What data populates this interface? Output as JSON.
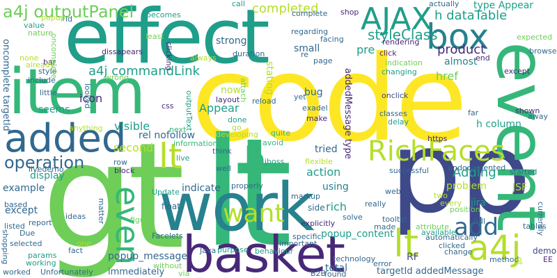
{
  "palette": {
    "yellow": "#fde725",
    "lime": "#b5de2b",
    "green": "#6ece58",
    "aqua": "#35b779",
    "teal": "#1f9e89",
    "blue": "#26828e",
    "navy": "#31688e",
    "indigo": "#3e4989",
    "purple": "#482878",
    "deep": "#440154"
  },
  "words": [
    {
      "text": "code",
      "color": "yellow"
    },
    {
      "text": "gt",
      "color": "green"
    },
    {
      "text": "lt",
      "color": "aqua"
    },
    {
      "text": "effect",
      "color": "teal"
    },
    {
      "text": "p",
      "color": "indigo"
    },
    {
      "text": "p",
      "color": "indigo"
    },
    {
      "text": "work",
      "color": "blue"
    },
    {
      "text": "item",
      "color": "aqua"
    },
    {
      "text": "event",
      "color": "aqua"
    },
    {
      "text": "basket",
      "color": "purple"
    },
    {
      "text": "added",
      "color": "navy"
    },
    {
      "text": "box",
      "color": "blue"
    },
    {
      "text": "AJAX",
      "color": "teal"
    },
    {
      "text": "RichFaces",
      "color": "lime"
    },
    {
      "text": "h",
      "color": "aqua"
    },
    {
      "text": "lt",
      "color": "lime"
    },
    {
      "text": "lt",
      "color": "lime"
    },
    {
      "text": "a4j",
      "color": "lime"
    },
    {
      "text": "even",
      "color": "aqua"
    },
    {
      "text": "want",
      "color": "lime"
    },
    {
      "text": "operation",
      "color": "navy"
    },
    {
      "text": "add",
      "color": "navy"
    },
    {
      "text": "a4j outputPanel",
      "color": "green"
    },
    {
      "text": "a4j commandLink",
      "color": "teal"
    },
    {
      "text": "completed",
      "color": "lime"
    },
    {
      "text": "h dataTable",
      "color": "teal"
    },
    {
      "text": "styleClass",
      "color": "teal"
    },
    {
      "text": "product",
      "color": "purple"
    },
    {
      "text": "almost",
      "color": "blue"
    },
    {
      "text": "type Appear",
      "color": "teal"
    },
    {
      "text": "strong",
      "color": "navy"
    },
    {
      "text": "small",
      "color": "navy"
    },
    {
      "text": "pre",
      "color": "teal"
    },
    {
      "text": "Adding",
      "color": "teal"
    },
    {
      "text": "stating",
      "color": "lime"
    },
    {
      "text": "href",
      "color": "green"
    },
    {
      "text": "bug",
      "color": "navy"
    },
    {
      "text": "Appear",
      "color": "teal"
    },
    {
      "text": "icon",
      "color": "purple"
    },
    {
      "text": "visible",
      "color": "teal"
    },
    {
      "text": "seems",
      "color": "teal"
    },
    {
      "text": "h column",
      "color": "teal"
    },
    {
      "text": "second",
      "color": "lime"
    },
    {
      "text": "rel nofollow",
      "color": "navy"
    },
    {
      "text": "tried",
      "color": "navy"
    },
    {
      "text": "display",
      "color": "teal"
    },
    {
      "text": "example",
      "color": "navy"
    },
    {
      "text": "action",
      "color": "teal"
    },
    {
      "text": "indicate",
      "color": "navy"
    },
    {
      "text": "problem",
      "color": "lime"
    },
    {
      "text": "using",
      "color": "blue"
    },
    {
      "text": "rich",
      "color": "teal"
    },
    {
      "text": "except",
      "color": "navy"
    },
    {
      "text": "popup_content",
      "color": "teal"
    },
    {
      "text": "popup_message",
      "color": "navy"
    },
    {
      "text": "immediately",
      "color": "navy"
    },
    {
      "text": "total",
      "color": "navy"
    },
    {
      "text": "targetId addedMessage",
      "color": "navy"
    },
    {
      "text": "RF",
      "color": "indigo"
    },
    {
      "text": "JSF",
      "color": "lime"
    },
    {
      "text": "jira",
      "color": "teal"
    },
    {
      "text": "demo",
      "color": "indigo"
    },
    {
      "text": "now",
      "color": "lime"
    },
    {
      "text": "addedMessage type",
      "color": "purple"
    },
    {
      "text": "oncomplete targetId",
      "color": "navy"
    },
    {
      "text": "side",
      "color": "navy"
    },
    {
      "text": "ideas",
      "color": "navy"
    },
    {
      "text": "livedemo",
      "color": "navy"
    },
    {
      "text": "Update",
      "color": "teal"
    },
    {
      "text": "reload",
      "color": "navy"
    },
    {
      "text": "done",
      "color": "teal"
    },
    {
      "text": "go",
      "color": "lime"
    },
    {
      "text": "developing",
      "color": "lime"
    },
    {
      "text": "quite",
      "color": "aqua"
    },
    {
      "text": "avoid",
      "color": "aqua"
    },
    {
      "text": "jboss",
      "color": "teal"
    },
    {
      "text": "flexible",
      "color": "lime"
    },
    {
      "text": "live",
      "color": "teal"
    },
    {
      "text": "well",
      "color": "navy"
    },
    {
      "text": "think",
      "color": "navy"
    },
    {
      "text": "information",
      "color": "aqua"
    },
    {
      "text": "next",
      "color": "aqua"
    },
    {
      "text": "anything",
      "color": "lime"
    },
    {
      "text": "row",
      "color": "navy"
    },
    {
      "text": "block",
      "color": "purple"
    },
    {
      "text": "float",
      "color": "navy"
    },
    {
      "text": "css",
      "color": "purple"
    },
    {
      "text": "layout",
      "color": "purple"
    },
    {
      "text": "outputText",
      "color": "teal"
    },
    {
      "text": "looked",
      "color": "navy"
    },
    {
      "text": "little",
      "color": "navy"
    },
    {
      "text": "include",
      "color": "navy"
    },
    {
      "text": "style",
      "color": "navy"
    },
    {
      "text": "bar",
      "color": "purple"
    },
    {
      "text": "none",
      "color": "lime"
    },
    {
      "text": "already",
      "color": "lime"
    },
    {
      "text": "nature",
      "color": "green"
    },
    {
      "text": "value",
      "color": "teal"
    },
    {
      "text": "popup",
      "color": "lime"
    },
    {
      "text": "id",
      "color": "navy"
    },
    {
      "text": "call",
      "color": "teal"
    },
    {
      "text": "becomes",
      "color": "teal"
    },
    {
      "text": "least",
      "color": "green"
    },
    {
      "text": "wrong",
      "color": "green"
    },
    {
      "text": "dissapears",
      "color": "purple"
    },
    {
      "text": "clicking",
      "color": "purple"
    },
    {
      "text": "always",
      "color": "lime"
    },
    {
      "text": "duration",
      "color": "navy"
    },
    {
      "text": "attach",
      "color": "green"
    },
    {
      "text": "complete",
      "color": "navy"
    },
    {
      "text": "regarding",
      "color": "navy"
    },
    {
      "text": "facing",
      "color": "navy"
    },
    {
      "text": "re",
      "color": "navy"
    },
    {
      "text": "page",
      "color": "navy"
    },
    {
      "text": "yet",
      "color": "navy"
    },
    {
      "text": "exadel",
      "color": "navy"
    },
    {
      "text": "make",
      "color": "purple"
    },
    {
      "text": "shop",
      "color": "purple"
    },
    {
      "text": "actually",
      "color": "navy"
    },
    {
      "text": "rendering",
      "color": "purple"
    },
    {
      "text": "click",
      "color": "purple"
    },
    {
      "text": "indication",
      "color": "green"
    },
    {
      "text": "changing",
      "color": "teal"
    },
    {
      "text": "onclick",
      "color": "indigo"
    },
    {
      "text": "classes",
      "color": "navy"
    },
    {
      "text": "delay",
      "color": "teal"
    },
    {
      "text": "end",
      "color": "purple"
    },
    {
      "text": "expected",
      "color": "green"
    },
    {
      "text": "browse",
      "color": "navy"
    },
    {
      "text": "except",
      "color": "purple"
    },
    {
      "text": "far",
      "color": "navy"
    },
    {
      "text": "shown",
      "color": "purple"
    },
    {
      "text": "away",
      "color": "navy"
    },
    {
      "text": "https",
      "color": "purple"
    },
    {
      "text": "undocumented",
      "color": "navy"
    },
    {
      "text": "started",
      "color": "navy"
    },
    {
      "text": "successful",
      "color": "navy"
    },
    {
      "text": "web",
      "color": "navy"
    },
    {
      "text": "two",
      "color": "lime"
    },
    {
      "text": "every",
      "color": "lime"
    },
    {
      "text": "position",
      "color": "green"
    },
    {
      "text": "full",
      "color": "navy"
    },
    {
      "text": "tables",
      "color": "navy"
    },
    {
      "text": "currently",
      "color": "navy"
    },
    {
      "text": "attribute",
      "color": "green"
    },
    {
      "text": "automatically",
      "color": "navy"
    },
    {
      "text": "clicked",
      "color": "navy"
    },
    {
      "text": "change",
      "color": "navy"
    },
    {
      "text": "method",
      "color": "navy"
    },
    {
      "text": "available",
      "color": "teal"
    },
    {
      "text": "EE",
      "color": "purple"
    },
    {
      "text": "gt",
      "color": "lime"
    },
    {
      "text": "really",
      "color": "navy"
    },
    {
      "text": "solve",
      "color": "navy"
    },
    {
      "text": "explicitly",
      "color": "purple"
    },
    {
      "text": "tooltip",
      "color": "navy"
    },
    {
      "text": "made",
      "color": "navy"
    },
    {
      "text": "specific",
      "color": "navy"
    },
    {
      "text": "technology",
      "color": "navy"
    },
    {
      "text": "error",
      "color": "navy"
    },
    {
      "text": "found",
      "color": "navy"
    },
    {
      "text": "markup",
      "color": "navy"
    },
    {
      "text": "important",
      "color": "navy"
    },
    {
      "text": "B2B",
      "color": "navy"
    },
    {
      "text": "Facelets",
      "color": "navy"
    },
    {
      "text": "Java",
      "color": "navy"
    },
    {
      "text": "purpose",
      "color": "teal"
    },
    {
      "text": "behaviour",
      "color": "teal"
    },
    {
      "text": "via",
      "color": "green"
    },
    {
      "text": "without",
      "color": "green"
    },
    {
      "text": "matter",
      "color": "navy"
    },
    {
      "text": "figure",
      "color": "green"
    },
    {
      "text": "properly",
      "color": "navy"
    },
    {
      "text": "Unfortunately",
      "color": "navy"
    },
    {
      "text": "fact",
      "color": "navy"
    },
    {
      "text": "one",
      "color": "lime"
    },
    {
      "text": "params",
      "color": "teal"
    },
    {
      "text": "working",
      "color": "teal"
    },
    {
      "text": "worked",
      "color": "navy"
    },
    {
      "text": "selected",
      "color": "navy"
    },
    {
      "text": "Due",
      "color": "navy"
    },
    {
      "text": "report",
      "color": "navy"
    },
    {
      "text": "listed",
      "color": "navy"
    },
    {
      "text": "based",
      "color": "navy"
    },
    {
      "text": "shopping",
      "color": "navy"
    },
    {
      "text": "oncomplete",
      "color": "green"
    }
  ]
}
